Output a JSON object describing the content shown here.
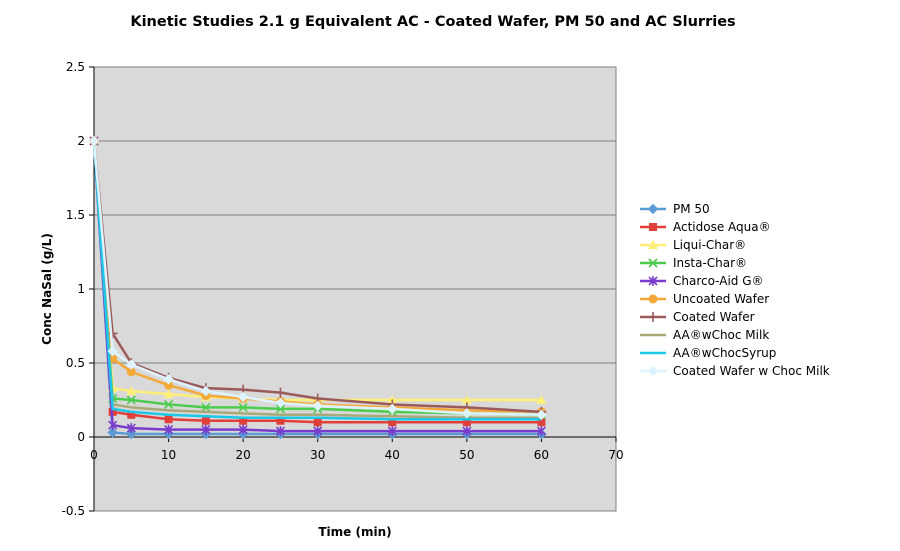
{
  "chart_data": {
    "type": "line",
    "title": "Kinetic Studies 2.1 g Equivalent AC - Coated Wafer, PM 50 and AC Slurries",
    "xlabel": "Time (min)",
    "ylabel": "Conc NaSal (g/L)",
    "xlim": [
      0,
      70
    ],
    "ylim": [
      -0.5,
      2.5
    ],
    "xticks": [
      0,
      10,
      20,
      30,
      40,
      50,
      60,
      70
    ],
    "yticks": [
      -0.5,
      0,
      0.5,
      1,
      1.5,
      2,
      2.5
    ],
    "xtick_labels": [
      "0",
      "10",
      "20",
      "30",
      "40",
      "50",
      "60",
      "70"
    ],
    "ytick_labels": [
      "-0.5",
      "0",
      "0.5",
      "1",
      "1.5",
      "2",
      "2.5"
    ],
    "plot_background": "#d9d9d9",
    "grid": "horizontal",
    "legend_position": "right",
    "x": [
      0,
      2.5,
      5,
      10,
      15,
      20,
      25,
      30,
      40,
      50,
      60
    ],
    "series": [
      {
        "name": "PM 50",
        "color": "#5b9bd5",
        "marker": "diamond",
        "values": [
          2.0,
          0.03,
          0.02,
          0.02,
          0.02,
          0.02,
          0.02,
          0.02,
          0.02,
          0.02,
          0.02
        ]
      },
      {
        "name": "Actidose Aqua®",
        "color": "#e0403a",
        "marker": "square",
        "values": [
          2.0,
          0.17,
          0.15,
          0.12,
          0.11,
          0.11,
          0.11,
          0.1,
          0.1,
          0.1,
          0.1
        ]
      },
      {
        "name": "Liqui-Char®",
        "color": "#ffee77",
        "marker": "triangle",
        "values": [
          2.0,
          0.33,
          0.31,
          0.29,
          0.27,
          0.26,
          0.25,
          0.25,
          0.25,
          0.25,
          0.25
        ]
      },
      {
        "name": "Insta-Char®",
        "color": "#4ccc4c",
        "marker": "x",
        "values": [
          2.0,
          0.26,
          0.25,
          0.22,
          0.2,
          0.2,
          0.19,
          0.19,
          0.17,
          0.16,
          0.15
        ]
      },
      {
        "name": "Charco-Aid G®",
        "color": "#7a3ccc",
        "marker": "star",
        "values": [
          2.0,
          0.08,
          0.06,
          0.05,
          0.05,
          0.05,
          0.04,
          0.04,
          0.04,
          0.04,
          0.04
        ]
      },
      {
        "name": "Uncoated Wafer",
        "color": "#f5a83a",
        "marker": "circle",
        "values": [
          2.0,
          0.53,
          0.44,
          0.35,
          0.28,
          0.26,
          0.24,
          0.22,
          0.2,
          0.18,
          0.17
        ]
      },
      {
        "name": "Coated Wafer",
        "color": "#9b5a5a",
        "marker": "plus",
        "values": [
          2.0,
          0.7,
          0.5,
          0.4,
          0.33,
          0.32,
          0.3,
          0.26,
          0.22,
          0.2,
          0.17
        ]
      },
      {
        "name": "AA®wChoc Milk",
        "color": "#a8a878",
        "marker": "none",
        "values": [
          2.0,
          0.22,
          0.2,
          0.18,
          0.17,
          0.16,
          0.15,
          0.15,
          0.14,
          0.13,
          0.13
        ]
      },
      {
        "name": "AA®wChocSyrup",
        "color": "#1cc8e8",
        "marker": "none",
        "values": [
          2.0,
          0.19,
          0.17,
          0.15,
          0.14,
          0.13,
          0.13,
          0.13,
          0.12,
          0.12,
          0.12
        ]
      },
      {
        "name": "Coated Wafer w Choc Milk",
        "color": "#ddf4ff",
        "marker": "diamond",
        "values": [
          2.0,
          0.58,
          0.49,
          0.39,
          0.31,
          0.27,
          0.23,
          0.21,
          0.19,
          0.16,
          0.15
        ]
      }
    ]
  }
}
